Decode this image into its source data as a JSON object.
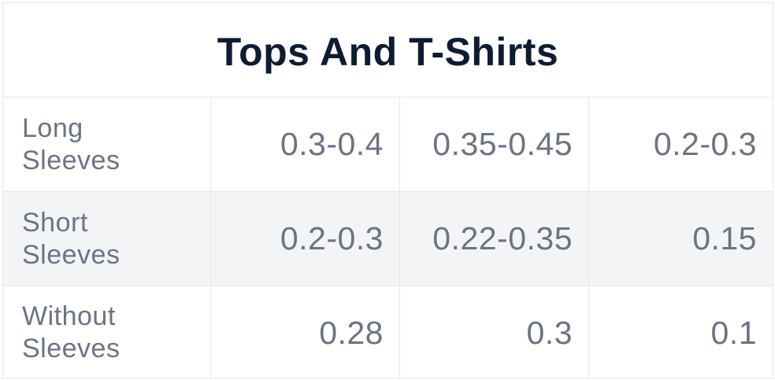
{
  "table": {
    "title": "Tops And T-Shirts",
    "rows": [
      {
        "label": "Long\nSleeves",
        "values": [
          "0.3-0.4",
          "0.35-0.45",
          "0.2-0.3"
        ]
      },
      {
        "label": "Short\nSleeves",
        "values": [
          "0.2-0.3",
          "0.22-0.35",
          "0.15"
        ]
      },
      {
        "label": "Without\nSleeves",
        "values": [
          "0.28",
          "0.3",
          "0.1"
        ]
      }
    ]
  }
}
